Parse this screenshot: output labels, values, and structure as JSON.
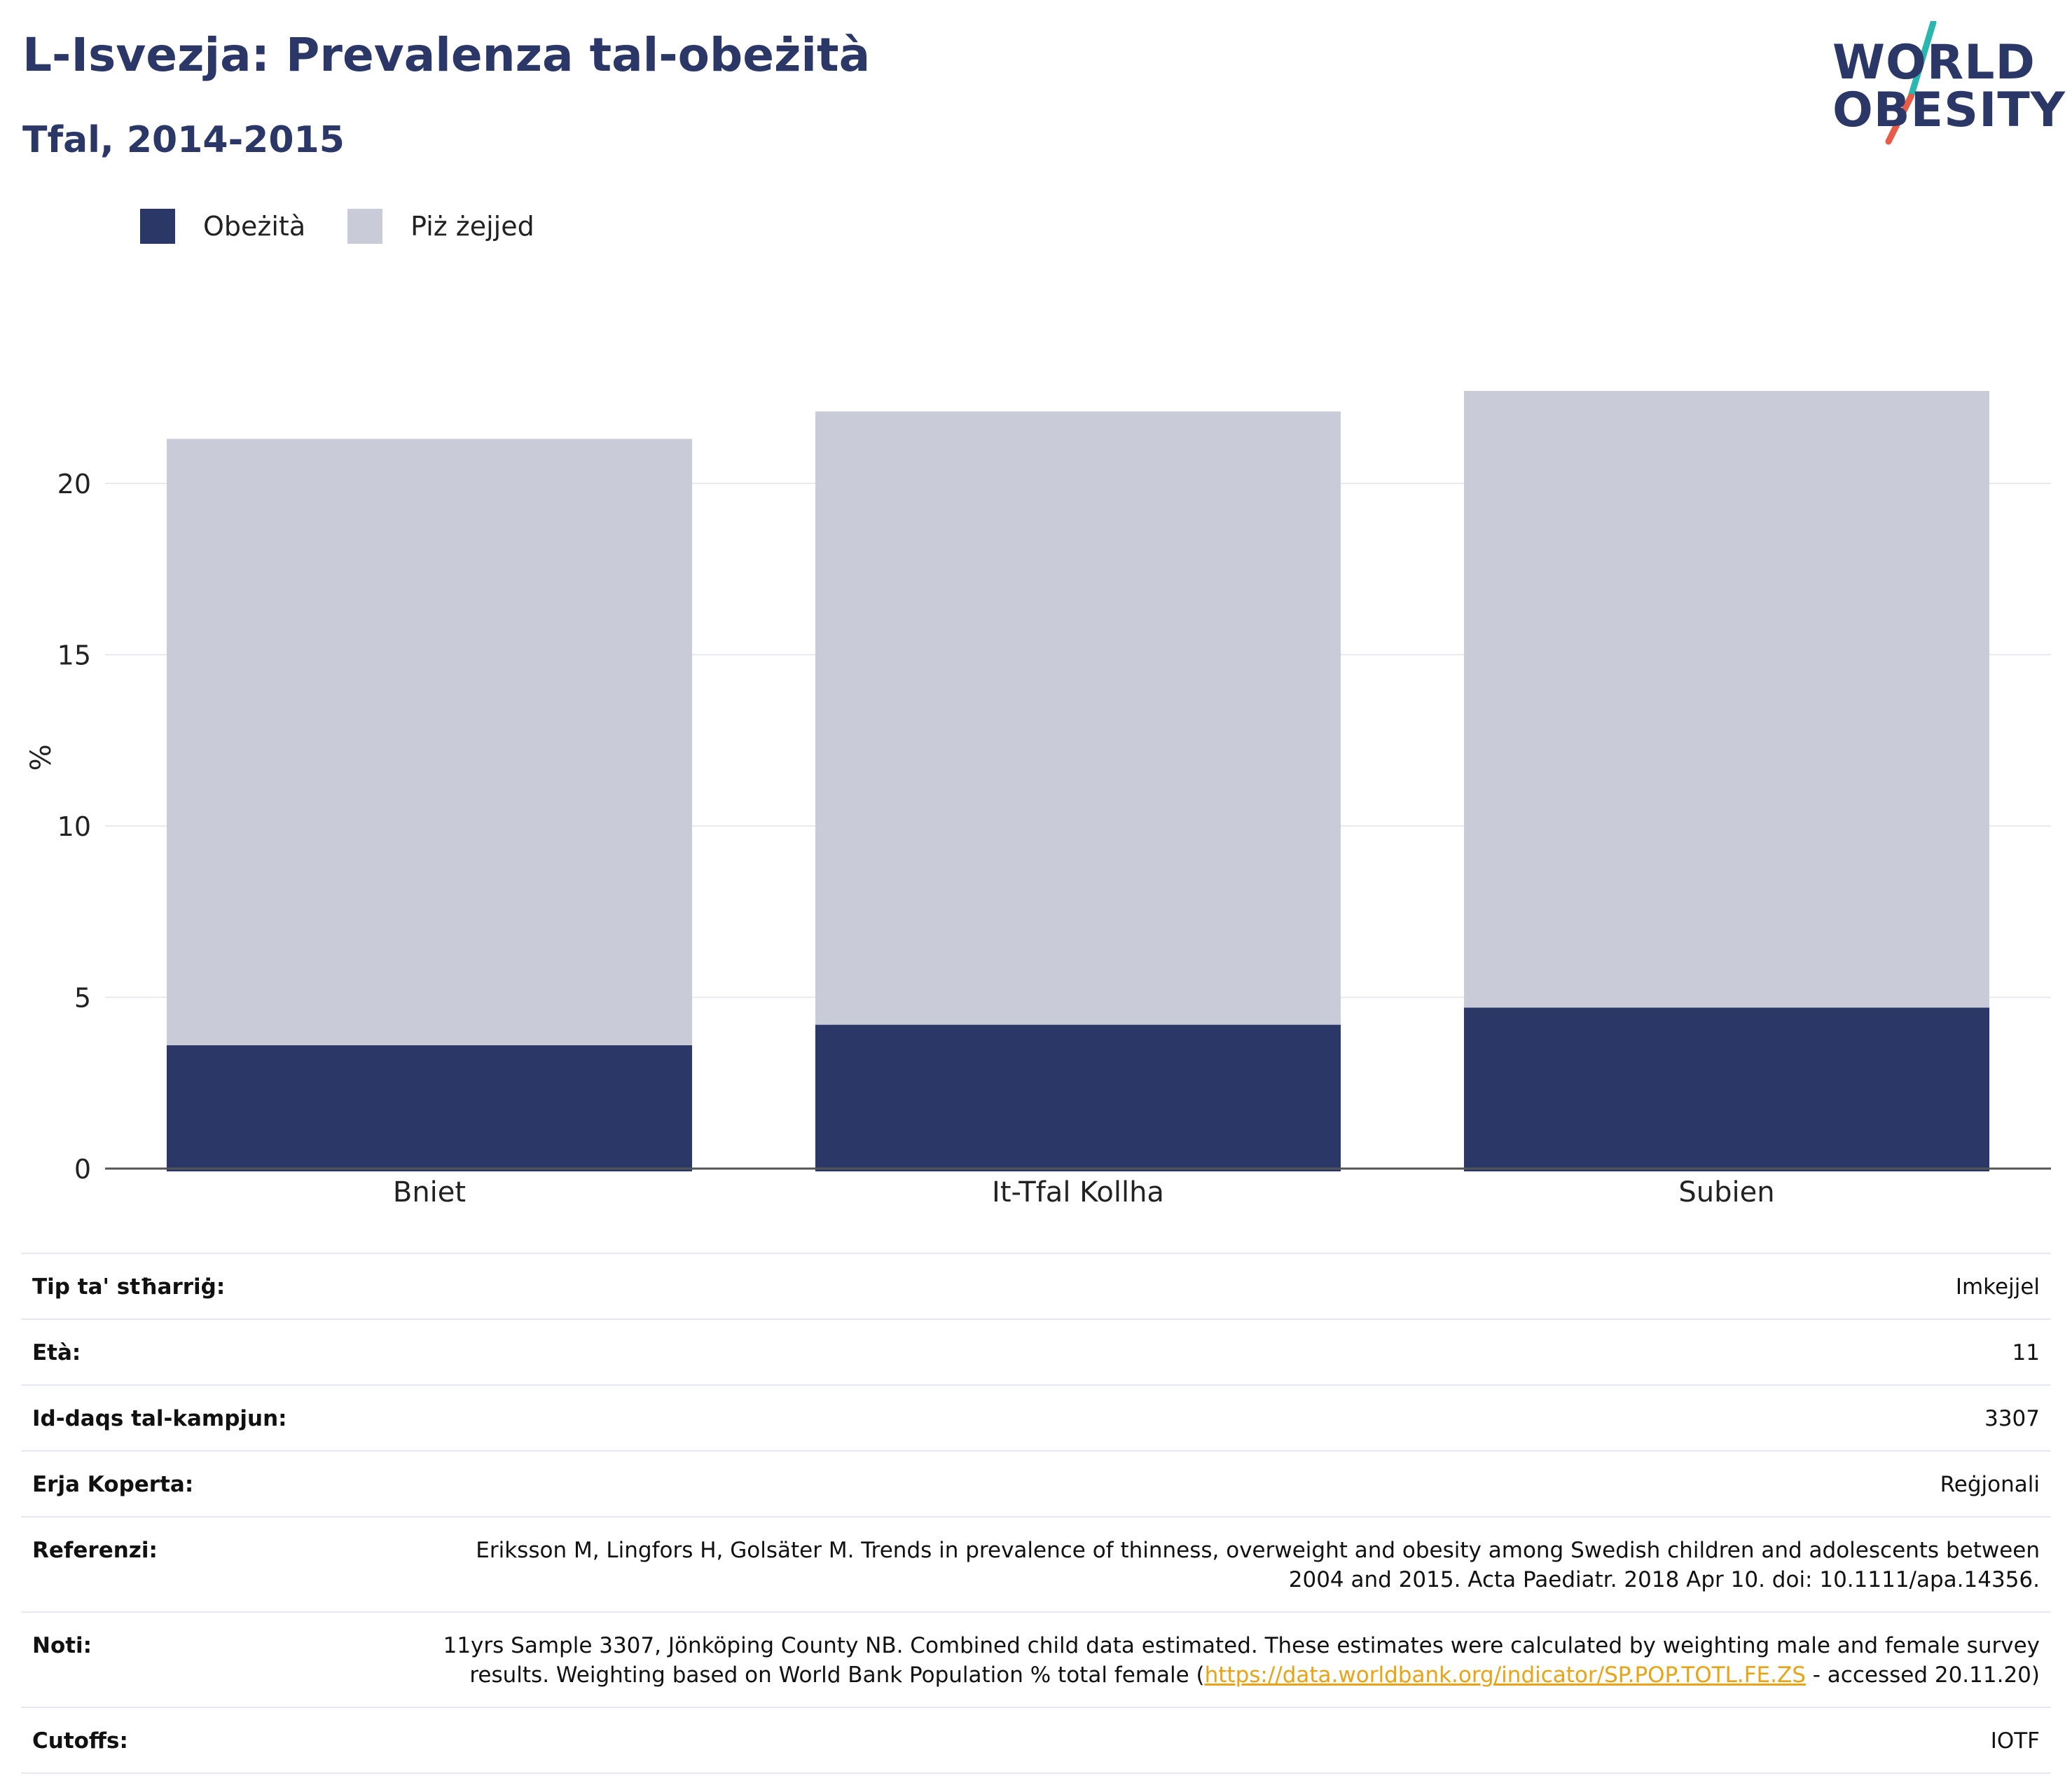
{
  "header": {
    "title": "L-Isvezja: Prevalenza tal-obeżità",
    "subtitle": "Tfal, 2014-2015"
  },
  "logo": {
    "line1": "WORLD",
    "line2": "OBESITY",
    "slash_colors": [
      "#2bb6b0",
      "#e85b46"
    ]
  },
  "chart_data": {
    "type": "bar",
    "stacked": true,
    "categories": [
      "Bniet",
      "It-Tfal Kollha",
      "Subien"
    ],
    "series": [
      {
        "name": "Obeżità",
        "color": "#2b3766",
        "values": [
          3.6,
          4.2,
          4.7
        ]
      },
      {
        "name": "Piż żejjed",
        "color": "#c9ccd8",
        "values": [
          17.7,
          17.9,
          18.0
        ]
      }
    ],
    "ylabel": "%",
    "ylim": [
      0,
      24
    ],
    "yticks": [
      0,
      5,
      10,
      15,
      20
    ],
    "grid": true,
    "legend_position": "top-left"
  },
  "info": [
    {
      "key": "Tip ta' stħarriġ:",
      "value": "Imkejjel"
    },
    {
      "key": "Età:",
      "value": "11"
    },
    {
      "key": "Id-daqs tal-kampjun:",
      "value": "3307"
    },
    {
      "key": "Erja Koperta:",
      "value": "Reġjonali"
    },
    {
      "key": "Referenzi:",
      "value": "Eriksson M, Lingfors H, Golsäter M. Trends in prevalence of thinness, overweight and obesity among Swedish children and adolescents between 2004 and 2015. Acta Paediatr. 2018 Apr 10. doi: 10.1111/apa.14356."
    },
    {
      "key": "Noti:",
      "value": "11yrs Sample 3307, Jönköping County NB. Combined child data estimated. These estimates were calculated by weighting male and female survey results. Weighting based on World Bank Population % total female (",
      "link": "https://data.worldbank.org/indicator/SP.POP.TOTL.FE.ZS",
      "value_suffix": " - accessed 20.11.20)"
    },
    {
      "key": "Cutoffs:",
      "value": "IOTF"
    }
  ]
}
